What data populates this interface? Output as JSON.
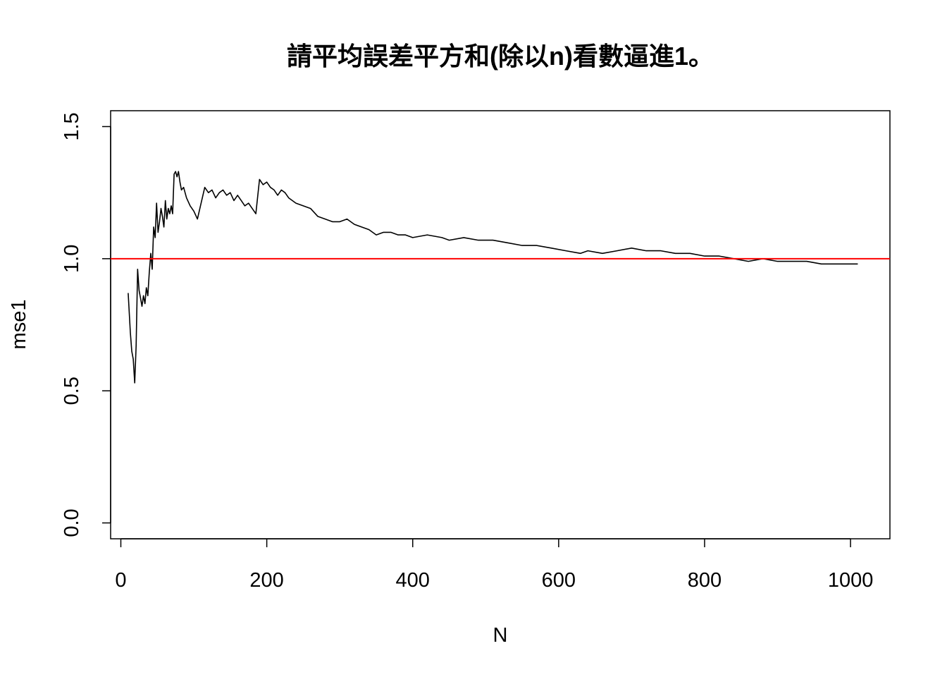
{
  "chart_data": {
    "type": "line",
    "title": "請平均誤差平方和(除以n)看數逼進1。",
    "xlabel": "N",
    "ylabel": "mse1",
    "xlim": [
      -14,
      1054
    ],
    "ylim": [
      -0.06,
      1.56
    ],
    "x_ticks": [
      0,
      200,
      400,
      600,
      800,
      1000
    ],
    "y_ticks": [
      0.0,
      0.5,
      1.0,
      1.5
    ],
    "x_tick_labels": [
      "0",
      "200",
      "400",
      "600",
      "800",
      "1000"
    ],
    "y_tick_labels": [
      "0.0",
      "0.5",
      "1.0",
      "1.5"
    ],
    "grid": false,
    "reference_line": {
      "y": 1.0,
      "color": "#ff0000"
    },
    "series": [
      {
        "color": "#000000",
        "x": [
          10,
          13,
          15,
          17,
          19,
          21,
          23,
          25,
          27,
          29,
          31,
          33,
          35,
          37,
          39,
          41,
          43,
          45,
          47,
          49,
          51,
          53,
          55,
          57,
          59,
          61,
          63,
          65,
          67,
          69,
          71,
          73,
          75,
          77,
          79,
          81,
          83,
          86,
          90,
          95,
          100,
          105,
          110,
          115,
          120,
          125,
          130,
          135,
          140,
          145,
          150,
          155,
          160,
          165,
          170,
          175,
          180,
          185,
          190,
          195,
          200,
          205,
          210,
          215,
          220,
          225,
          230,
          240,
          250,
          260,
          270,
          280,
          290,
          300,
          310,
          320,
          330,
          340,
          350,
          360,
          370,
          380,
          390,
          400,
          420,
          440,
          450,
          470,
          490,
          510,
          530,
          550,
          570,
          590,
          610,
          630,
          640,
          660,
          680,
          700,
          720,
          740,
          760,
          780,
          800,
          820,
          840,
          860,
          880,
          900,
          920,
          940,
          960,
          980,
          1000,
          1010
        ],
        "y": [
          0.87,
          0.72,
          0.65,
          0.62,
          0.53,
          0.67,
          0.96,
          0.88,
          0.85,
          0.82,
          0.86,
          0.83,
          0.89,
          0.86,
          0.95,
          1.02,
          0.96,
          1.12,
          1.08,
          1.21,
          1.1,
          1.14,
          1.19,
          1.16,
          1.12,
          1.22,
          1.15,
          1.19,
          1.17,
          1.2,
          1.17,
          1.32,
          1.33,
          1.31,
          1.33,
          1.29,
          1.26,
          1.27,
          1.23,
          1.2,
          1.18,
          1.15,
          1.21,
          1.27,
          1.25,
          1.26,
          1.23,
          1.25,
          1.26,
          1.24,
          1.25,
          1.22,
          1.24,
          1.22,
          1.2,
          1.21,
          1.19,
          1.17,
          1.3,
          1.28,
          1.29,
          1.27,
          1.26,
          1.24,
          1.26,
          1.25,
          1.23,
          1.21,
          1.2,
          1.19,
          1.16,
          1.15,
          1.14,
          1.14,
          1.15,
          1.13,
          1.12,
          1.11,
          1.09,
          1.1,
          1.1,
          1.09,
          1.09,
          1.08,
          1.09,
          1.08,
          1.07,
          1.08,
          1.07,
          1.07,
          1.06,
          1.05,
          1.05,
          1.04,
          1.03,
          1.02,
          1.03,
          1.02,
          1.03,
          1.04,
          1.03,
          1.03,
          1.02,
          1.02,
          1.01,
          1.01,
          1.0,
          0.99,
          1.0,
          0.99,
          0.99,
          0.99,
          0.98,
          0.98,
          0.98,
          0.98
        ]
      }
    ]
  }
}
